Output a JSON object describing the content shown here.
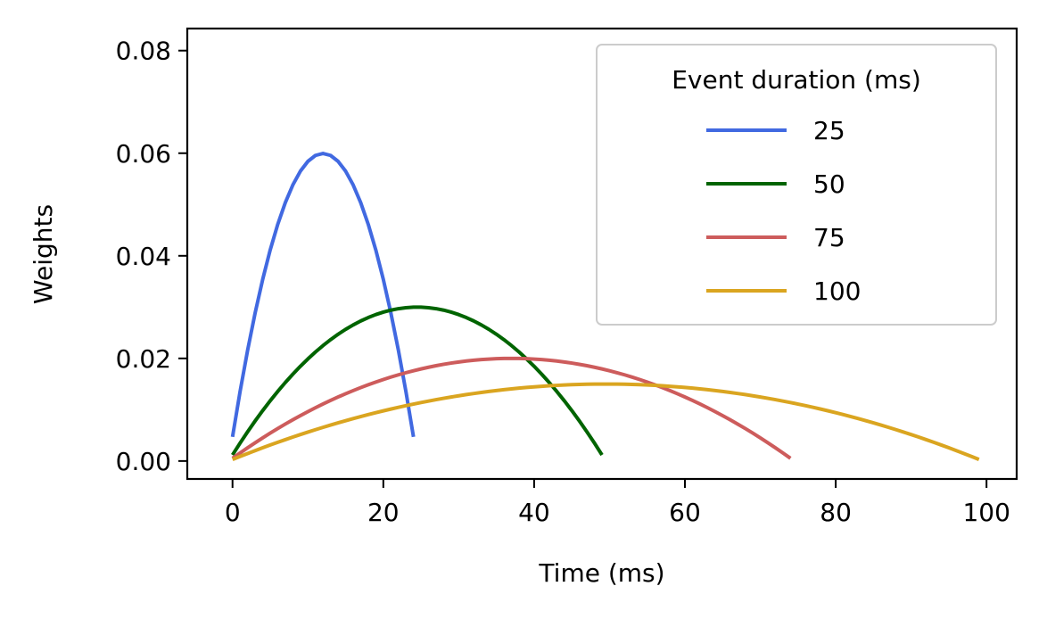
{
  "chart_data": {
    "type": "line",
    "title": "",
    "xlabel": "Time (ms)",
    "ylabel": "Weights",
    "xlim": [
      -6,
      104
    ],
    "ylim": [
      -0.0035,
      0.0843
    ],
    "xticks": [
      0,
      20,
      40,
      60,
      80,
      100
    ],
    "xtick_labels": [
      "0",
      "20",
      "40",
      "60",
      "80",
      "100"
    ],
    "yticks": [
      0.0,
      0.02,
      0.04,
      0.06,
      0.08
    ],
    "ytick_labels": [
      "0.00",
      "0.02",
      "0.04",
      "0.06",
      "0.08"
    ],
    "grid": false,
    "legend": {
      "title": "Event duration (ms)",
      "placement": "top-right"
    },
    "series": [
      {
        "name": "25",
        "duration": 25,
        "color": "#4169e1"
      },
      {
        "name": "50",
        "duration": 50,
        "color": "#006400"
      },
      {
        "name": "75",
        "duration": 75,
        "color": "#cd5c5c"
      },
      {
        "name": "100",
        "duration": 100,
        "color": "#daa520"
      }
    ]
  }
}
